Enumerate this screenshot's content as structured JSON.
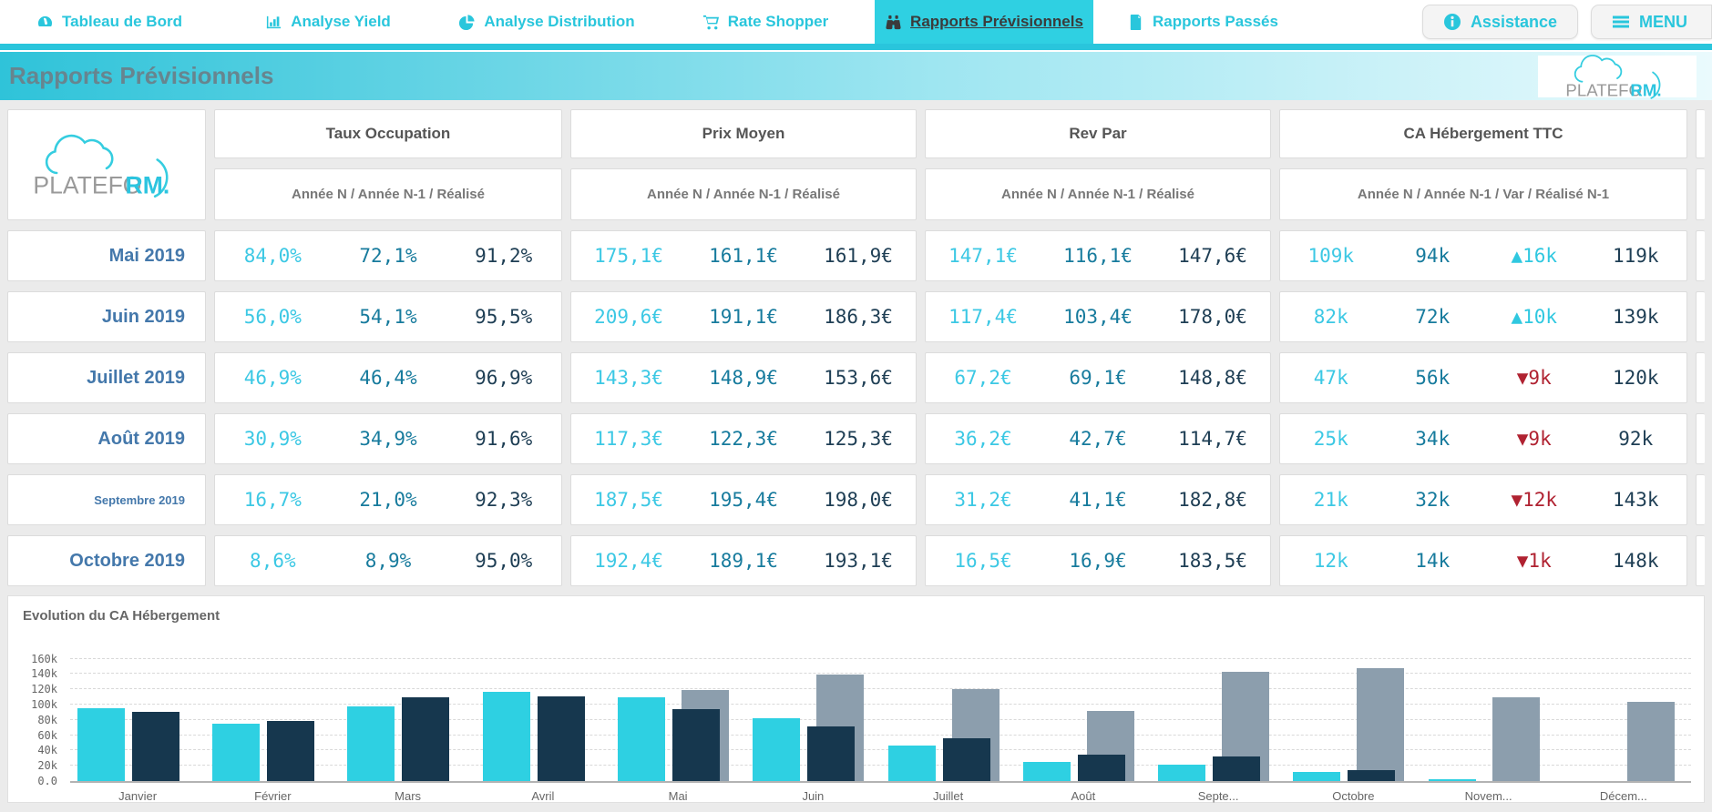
{
  "nav": {
    "tabs": [
      {
        "label": "Tableau de Bord",
        "icon": "dashboard",
        "active": false
      },
      {
        "label": "Analyse Yield",
        "icon": "bar-chart",
        "active": false
      },
      {
        "label": "Analyse Distribution",
        "icon": "pie-chart",
        "active": false
      },
      {
        "label": "Rate Shopper",
        "icon": "cart",
        "active": false
      },
      {
        "label": "Rapports Prévisionnels",
        "icon": "binoculars",
        "active": true
      },
      {
        "label": "Rapports Passés",
        "icon": "report",
        "active": false
      }
    ],
    "assistance_label": "Assistance",
    "menu_label": "MENU"
  },
  "header": {
    "title": "Rapports Prévisionnels",
    "brand_gray": "PLATEFO",
    "brand_accent": "RM."
  },
  "colors": {
    "accent_cyan": "#2fd0e2",
    "value_cyan": "#3cc8e4",
    "value_teal": "#177b9d",
    "value_navy": "#1e3e54",
    "value_red": "#b02231",
    "bar_cyan": "#2ed0e2",
    "bar_navy": "#16374e",
    "bar_gray": "#8c9ead"
  },
  "table": {
    "columns": [
      {
        "title": "Taux Occupation",
        "subtitle": "Année N / Année N-1 / Réalisé"
      },
      {
        "title": "Prix Moyen",
        "subtitle": "Année N / Année N-1 / Réalisé"
      },
      {
        "title": "Rev Par",
        "subtitle": "Année N / Année N-1 / Réalisé"
      },
      {
        "title": "CA Hébergement TTC",
        "subtitle": "Année N / Année N-1 / Var / Réalisé N-1"
      }
    ],
    "rows": [
      {
        "month": "Mai 2019",
        "small": false,
        "dir": "up",
        "taux": [
          "84,0%",
          "72,1%",
          "91,2%"
        ],
        "prix": [
          "175,1€",
          "161,1€",
          "161,9€"
        ],
        "revpar": [
          "147,1€",
          "116,1€",
          "147,6€"
        ],
        "ca": [
          "109k",
          "94k",
          "▲16k",
          "119k"
        ]
      },
      {
        "month": "Juin 2019",
        "small": false,
        "dir": "up",
        "taux": [
          "56,0%",
          "54,1%",
          "95,5%"
        ],
        "prix": [
          "209,6€",
          "191,1€",
          "186,3€"
        ],
        "revpar": [
          "117,4€",
          "103,4€",
          "178,0€"
        ],
        "ca": [
          "82k",
          "72k",
          "▲10k",
          "139k"
        ]
      },
      {
        "month": "Juillet 2019",
        "small": false,
        "dir": "down",
        "taux": [
          "46,9%",
          "46,4%",
          "96,9%"
        ],
        "prix": [
          "143,3€",
          "148,9€",
          "153,6€"
        ],
        "revpar": [
          "67,2€",
          "69,1€",
          "148,8€"
        ],
        "ca": [
          "47k",
          "56k",
          "▼9k",
          "120k"
        ]
      },
      {
        "month": "Août 2019",
        "small": false,
        "dir": "down",
        "taux": [
          "30,9%",
          "34,9%",
          "91,6%"
        ],
        "prix": [
          "117,3€",
          "122,3€",
          "125,3€"
        ],
        "revpar": [
          "36,2€",
          "42,7€",
          "114,7€"
        ],
        "ca": [
          "25k",
          "34k",
          "▼9k",
          "92k"
        ]
      },
      {
        "month": "Septembre 2019",
        "small": true,
        "dir": "down",
        "taux": [
          "16,7%",
          "21,0%",
          "92,3%"
        ],
        "prix": [
          "187,5€",
          "195,4€",
          "198,0€"
        ],
        "revpar": [
          "31,2€",
          "41,1€",
          "182,8€"
        ],
        "ca": [
          "21k",
          "32k",
          "▼12k",
          "143k"
        ]
      },
      {
        "month": "Octobre 2019",
        "small": false,
        "dir": "down",
        "taux": [
          "8,6%",
          "8,9%",
          "95,0%"
        ],
        "prix": [
          "192,4€",
          "189,1€",
          "193,1€"
        ],
        "revpar": [
          "16,5€",
          "16,9€",
          "183,5€"
        ],
        "ca": [
          "12k",
          "14k",
          "▼1k",
          "148k"
        ]
      }
    ]
  },
  "chart_data": {
    "type": "bar",
    "title": "Evolution du CA Hébergement",
    "categories": [
      "Janvier",
      "Février",
      "Mars",
      "Avril",
      "Mai",
      "Juin",
      "Juillet",
      "Août",
      "Septembre",
      "Octobre",
      "Novembre",
      "Décembre"
    ],
    "x_tick_labels": [
      "Janvier",
      "Février",
      "Mars",
      "Avril",
      "Mai",
      "Juin",
      "Juillet",
      "Août",
      "Septe...",
      "Octobre",
      "Novem...",
      "Décem..."
    ],
    "series": [
      {
        "name": "Année N",
        "color": "#2ed0e2",
        "values_k": [
          95,
          75,
          98,
          117,
          109,
          82,
          47,
          25,
          21,
          12,
          2,
          0
        ]
      },
      {
        "name": "Année N-1",
        "color": "#16374e",
        "values_k": [
          90,
          79,
          110,
          111,
          94,
          72,
          56,
          34,
          32,
          14,
          0,
          0
        ]
      },
      {
        "name": "Réalisé N-1",
        "color": "#8c9ead",
        "values_k": [
          null,
          null,
          null,
          null,
          119,
          139,
          120,
          92,
          143,
          148,
          110,
          103
        ]
      }
    ],
    "y_tick_labels": [
      "0.0",
      "20k",
      "40k",
      "60k",
      "80k",
      "100k",
      "120k",
      "140k",
      "160k"
    ],
    "y_tick_values_k": [
      0,
      20,
      40,
      60,
      80,
      100,
      120,
      140,
      160
    ],
    "ylim_k": [
      0,
      175
    ],
    "grid": "dashed-horizontal",
    "legend": "none"
  }
}
